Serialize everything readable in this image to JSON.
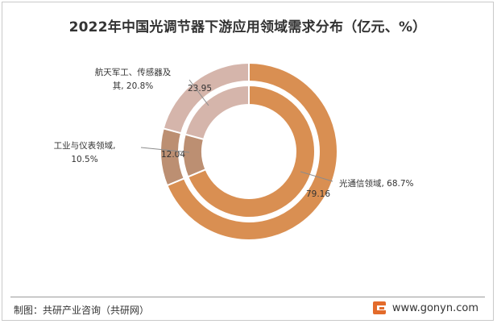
{
  "title": "2022年中国光调节器下游应用领域需求分布（亿元、%）",
  "source": "制图：共研产业咨询（共研网）",
  "brand": {
    "text": "www.gonyn.com",
    "icon": "gonyn-logo-icon",
    "color": "#e36b2b"
  },
  "chart_data": {
    "type": "pie",
    "variant": "double-donut",
    "title": "2022年中国光调节器下游应用领域需求分布（亿元、%）",
    "slices": [
      {
        "label": "光通信领域",
        "value": 79.16,
        "percent": "68.7%",
        "outer_color": "#d98f52",
        "inner_color": "#d98f52"
      },
      {
        "label": "工业与仪表领域",
        "value": 12.04,
        "percent": "10.5%",
        "outer_color": "#bc8f72",
        "inner_color": "#bc8f72"
      },
      {
        "label": "航天军工、传感器及其",
        "value": 23.95,
        "percent": "20.8%",
        "outer_color": "#d5b5ab",
        "inner_color": "#d5b5ab"
      }
    ],
    "outer_labels": [
      {
        "lines": [
          "光通信领域, 68.7%"
        ]
      },
      {
        "lines": [
          "工业与仪表领域,",
          "10.5%"
        ]
      },
      {
        "lines": [
          "航天军工、传感器及",
          "其, 20.8%"
        ]
      }
    ],
    "inner_value_labels": [
      "79.16",
      "12.04",
      "23.95"
    ]
  }
}
